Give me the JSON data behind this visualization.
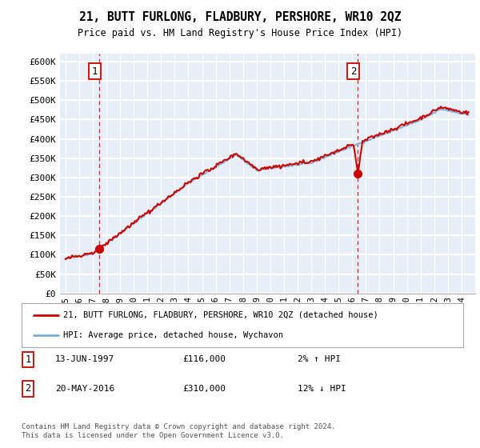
{
  "title": "21, BUTT FURLONG, FLADBURY, PERSHORE, WR10 2QZ",
  "subtitle": "Price paid vs. HM Land Registry's House Price Index (HPI)",
  "legend_line1": "21, BUTT FURLONG, FLADBURY, PERSHORE, WR10 2QZ (detached house)",
  "legend_line2": "HPI: Average price, detached house, Wychavon",
  "sale1_date": "13-JUN-1997",
  "sale1_price": "£116,000",
  "sale1_hpi": "2% ↑ HPI",
  "sale1_year": 1997.45,
  "sale1_value": 116000,
  "sale2_date": "20-MAY-2016",
  "sale2_price": "£310,000",
  "sale2_hpi": "12% ↓ HPI",
  "sale2_year": 2016.38,
  "sale2_value": 310000,
  "ylim": [
    0,
    620000
  ],
  "yticks": [
    0,
    50000,
    100000,
    150000,
    200000,
    250000,
    300000,
    350000,
    400000,
    450000,
    500000,
    550000,
    600000
  ],
  "ytick_labels": [
    "£0",
    "£50K",
    "£100K",
    "£150K",
    "£200K",
    "£250K",
    "£300K",
    "£350K",
    "£400K",
    "£450K",
    "£500K",
    "£550K",
    "£600K"
  ],
  "xlim_left": 1994.6,
  "xlim_right": 2025.0,
  "x_years": [
    1995,
    1996,
    1997,
    1998,
    1999,
    2000,
    2001,
    2002,
    2003,
    2004,
    2005,
    2006,
    2007,
    2008,
    2009,
    2010,
    2011,
    2012,
    2013,
    2014,
    2015,
    2016,
    2017,
    2018,
    2019,
    2020,
    2021,
    2022,
    2023,
    2024
  ],
  "property_color": "#cc0000",
  "hpi_color": "#7aaed6",
  "sale_marker_color": "#cc0000",
  "vline_color": "#cc0000",
  "bg_color": "#e8eef8",
  "grid_color": "#ffffff",
  "footer": "Contains HM Land Registry data © Crown copyright and database right 2024.\nThis data is licensed under the Open Government Licence v3.0."
}
